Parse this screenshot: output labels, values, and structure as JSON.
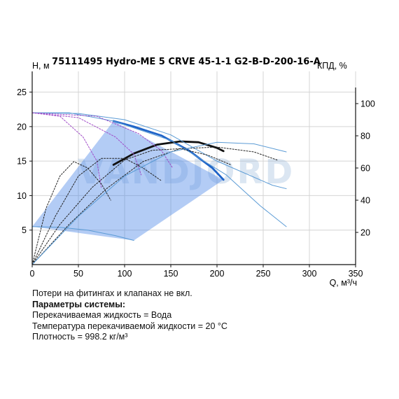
{
  "chart_data": {
    "type": "line",
    "title": "75111495 Hydro-ME 5 CRVE 45-1-1 G2-B-D-200-16-A",
    "y_label_left": "H, м",
    "y_label_right": "КПД, %",
    "x_label": "Q, м³/ч",
    "xlim": [
      0,
      350
    ],
    "ylim_left": [
      0,
      28
    ],
    "ylim_right": [
      0,
      120
    ],
    "x_ticks": [
      0,
      50,
      100,
      150,
      200,
      250,
      300,
      350
    ],
    "y_ticks_left": [
      5,
      10,
      15,
      20,
      25
    ],
    "y_ticks_right": [
      20,
      40,
      60,
      80,
      100
    ],
    "grid": true,
    "watermark": "VANDJORD",
    "operating_area": [
      [
        0,
        5.5
      ],
      [
        88,
        20.8
      ],
      [
        207,
        12.3
      ],
      [
        110,
        3.5
      ]
    ],
    "series": [
      {
        "role": "head_max_bold",
        "color": "#1e63c8",
        "points": [
          [
            88,
            20.8
          ],
          [
            110,
            20
          ],
          [
            140,
            18.7
          ],
          [
            170,
            16.5
          ],
          [
            195,
            14
          ],
          [
            207,
            12.3
          ]
        ]
      },
      {
        "role": "efficiency_bold",
        "color": "#111111",
        "axis": "right",
        "points": [
          [
            88,
            62
          ],
          [
            110,
            69
          ],
          [
            135,
            74.5
          ],
          [
            160,
            76.5
          ],
          [
            180,
            76
          ],
          [
            200,
            72.5
          ],
          [
            207,
            70.5
          ]
        ]
      },
      {
        "role": "head_max_extension",
        "color": "#5b9bd5",
        "points": [
          [
            0,
            22
          ],
          [
            40,
            22
          ],
          [
            88,
            20.8
          ],
          [
            150,
            18
          ],
          [
            210,
            13
          ],
          [
            247,
            8.5
          ],
          [
            275,
            5.5
          ]
        ]
      },
      {
        "role": "head_100pct",
        "color": "#5b9bd5",
        "points": [
          [
            0,
            22
          ],
          [
            50,
            21.9
          ],
          [
            100,
            21
          ],
          [
            150,
            18.8
          ],
          [
            200,
            15
          ],
          [
            260,
            11.5
          ],
          [
            275,
            11
          ]
        ]
      },
      {
        "role": "head_min",
        "color": "#5b9bd5",
        "points": [
          [
            0,
            5.5
          ],
          [
            30,
            5.4
          ],
          [
            60,
            5
          ],
          [
            90,
            4.2
          ],
          [
            110,
            3.5
          ]
        ]
      },
      {
        "role": "speed_curve",
        "color": "#a04ac8",
        "dashed": true,
        "points": [
          [
            0,
            22
          ],
          [
            30,
            21.5
          ],
          [
            55,
            18.5
          ],
          [
            70,
            15
          ],
          [
            75,
            11
          ]
        ]
      },
      {
        "role": "speed_curve",
        "color": "#a04ac8",
        "dashed": true,
        "points": [
          [
            0,
            22
          ],
          [
            50,
            21.3
          ],
          [
            90,
            18.5
          ],
          [
            110,
            16
          ],
          [
            118,
            13
          ]
        ]
      },
      {
        "role": "speed_curve",
        "color": "#a04ac8",
        "dashed": true,
        "points": [
          [
            0,
            22
          ],
          [
            70,
            21.5
          ],
          [
            115,
            19
          ],
          [
            140,
            16.5
          ],
          [
            152,
            14
          ]
        ]
      },
      {
        "role": "efficiency_curve",
        "color": "#222222",
        "dashed": true,
        "axis": "right",
        "points": [
          [
            0,
            0
          ],
          [
            15,
            35
          ],
          [
            30,
            55
          ],
          [
            45,
            64
          ],
          [
            60,
            60
          ],
          [
            75,
            50
          ],
          [
            85,
            40
          ]
        ]
      },
      {
        "role": "efficiency_curve",
        "color": "#222222",
        "dashed": true,
        "axis": "right",
        "points": [
          [
            0,
            0
          ],
          [
            25,
            30
          ],
          [
            50,
            55
          ],
          [
            75,
            66
          ],
          [
            100,
            66
          ],
          [
            120,
            60
          ],
          [
            140,
            52
          ]
        ]
      },
      {
        "role": "efficiency_curve",
        "color": "#222222",
        "dashed": true,
        "axis": "right",
        "points": [
          [
            0,
            0
          ],
          [
            30,
            25
          ],
          [
            65,
            48
          ],
          [
            100,
            65
          ],
          [
            130,
            71
          ],
          [
            160,
            72
          ],
          [
            190,
            68
          ],
          [
            215,
            62
          ]
        ]
      },
      {
        "role": "efficiency_curve",
        "color": "#222222",
        "dashed": true,
        "axis": "right",
        "points": [
          [
            0,
            0
          ],
          [
            40,
            25
          ],
          [
            80,
            47
          ],
          [
            120,
            64
          ],
          [
            160,
            72
          ],
          [
            200,
            73
          ],
          [
            240,
            70
          ],
          [
            265,
            65
          ]
        ]
      },
      {
        "role": "efficiency_curve",
        "color": "#5b9bd5",
        "axis": "right",
        "points": [
          [
            0,
            0
          ],
          [
            50,
            30
          ],
          [
            100,
            55
          ],
          [
            150,
            70
          ],
          [
            200,
            76
          ],
          [
            240,
            75
          ],
          [
            275,
            70
          ]
        ]
      }
    ]
  },
  "notes": {
    "line1": "Потери на фитингах и клапанах не вкл.",
    "line2": "Параметры системы:",
    "line3": "Перекачиваемая жидкость = Вода",
    "line4": "Температура перекачиваемой жидкости = 20 °C",
    "line5": "Плотность = 998.2 кг/м³"
  }
}
